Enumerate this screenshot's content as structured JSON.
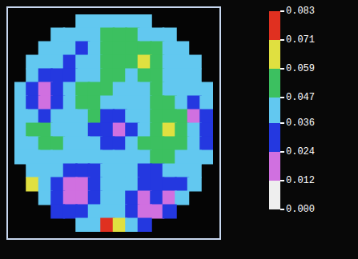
{
  "chart_data": {
    "type": "heatmap",
    "xlim": [
      0,
      16
    ],
    "ylim": [
      0,
      16
    ],
    "tick_labels": false,
    "cells": [
      [
        null,
        null,
        null,
        null,
        null,
        0.042,
        0.042,
        0.042,
        0.042,
        0.042,
        0.042,
        null,
        null,
        null,
        null,
        null
      ],
      [
        null,
        null,
        null,
        0.042,
        0.042,
        0.042,
        0.042,
        0.053,
        0.053,
        0.053,
        0.042,
        0.042,
        0.042,
        null,
        null,
        null
      ],
      [
        null,
        null,
        0.042,
        0.042,
        0.042,
        0.03,
        0.042,
        0.053,
        0.053,
        0.053,
        0.053,
        0.053,
        0.042,
        0.042,
        null,
        null
      ],
      [
        null,
        0.042,
        0.042,
        0.042,
        0.03,
        0.042,
        0.042,
        0.053,
        0.053,
        0.053,
        0.065,
        0.053,
        0.042,
        0.042,
        0.042,
        null
      ],
      [
        null,
        0.042,
        0.03,
        0.03,
        0.03,
        0.042,
        0.042,
        0.053,
        0.053,
        0.042,
        0.053,
        0.053,
        0.042,
        0.042,
        0.042,
        null
      ],
      [
        0.042,
        0.03,
        0.018,
        0.03,
        0.042,
        0.053,
        0.053,
        0.053,
        0.042,
        0.042,
        0.042,
        0.053,
        0.042,
        0.042,
        0.042,
        0.042
      ],
      [
        0.042,
        0.03,
        0.018,
        0.03,
        0.042,
        0.053,
        0.053,
        0.042,
        0.042,
        0.042,
        0.042,
        0.053,
        0.053,
        0.042,
        0.03,
        0.042
      ],
      [
        0.042,
        0.042,
        0.03,
        0.042,
        0.042,
        0.042,
        0.053,
        0.03,
        0.03,
        0.042,
        0.042,
        0.053,
        0.053,
        0.053,
        0.018,
        0.03
      ],
      [
        0.042,
        0.053,
        0.053,
        0.042,
        0.042,
        0.042,
        0.03,
        0.03,
        0.018,
        0.03,
        0.042,
        0.053,
        0.065,
        0.053,
        0.042,
        0.03
      ],
      [
        0.042,
        0.042,
        0.053,
        0.053,
        0.042,
        0.042,
        0.042,
        0.03,
        0.03,
        0.042,
        0.053,
        0.053,
        0.053,
        0.053,
        0.042,
        0.03
      ],
      [
        0.042,
        0.042,
        0.042,
        0.042,
        0.042,
        0.042,
        0.042,
        0.042,
        0.042,
        0.042,
        0.042,
        0.053,
        0.053,
        0.042,
        0.042,
        0.042
      ],
      [
        null,
        0.042,
        0.042,
        0.042,
        0.03,
        0.03,
        0.03,
        0.042,
        0.042,
        0.042,
        0.03,
        0.03,
        0.042,
        0.042,
        0.042,
        null
      ],
      [
        null,
        0.065,
        0.042,
        0.03,
        0.018,
        0.018,
        0.03,
        0.042,
        0.042,
        0.042,
        0.03,
        0.03,
        0.03,
        0.03,
        0.042,
        null
      ],
      [
        null,
        null,
        0.042,
        0.03,
        0.018,
        0.018,
        0.03,
        0.042,
        0.042,
        0.03,
        0.018,
        0.03,
        0.018,
        0.042,
        null,
        null
      ],
      [
        null,
        null,
        null,
        0.03,
        0.03,
        0.03,
        0.042,
        0.042,
        0.042,
        0.03,
        0.018,
        0.018,
        0.03,
        null,
        null,
        null
      ],
      [
        null,
        null,
        null,
        null,
        null,
        0.042,
        0.042,
        0.077,
        0.065,
        0.042,
        0.03,
        null,
        null,
        null,
        null,
        null
      ]
    ],
    "colorbar": {
      "range": [
        0,
        0.083
      ],
      "ticks": [
        {
          "value": 0,
          "label": "0.000"
        },
        0.012,
        0.024,
        0.036,
        0.047,
        0.059,
        0.071,
        0.083
      ],
      "colors": [
        "#eeeeee",
        "#d070e0",
        "#2438e0",
        "#62c8f0",
        "#3cc060",
        "#e0e040",
        "#e03020"
      ]
    }
  }
}
